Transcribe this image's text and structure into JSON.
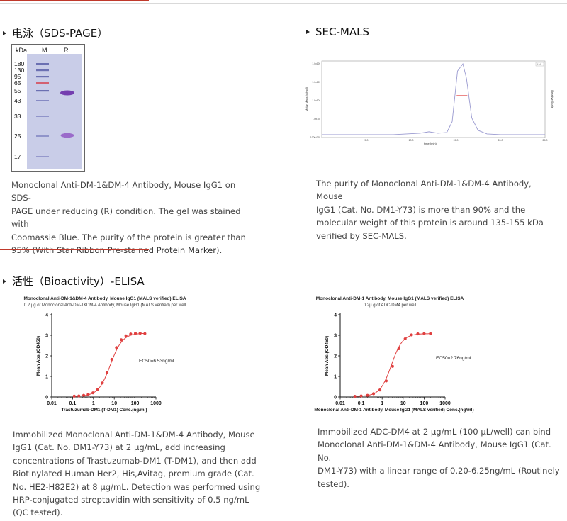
{
  "sds": {
    "title": "电泳（SDS-PAGE）",
    "gel": {
      "header_kda": "kDa",
      "header_m": "M",
      "header_r": "R",
      "markers": [
        "180",
        "130",
        "95",
        "65",
        "55",
        "43",
        "33",
        "25",
        "17"
      ]
    },
    "desc_1": "Monoclonal Anti-DM-1&DM-4 Antibody, Mouse IgG1 on SDS-",
    "desc_2": "PAGE under reducing (R) condition. The gel was stained with",
    "desc_3": "Coomassie Blue. The purity of the protein is greater than",
    "desc_4_pre": "95% (With ",
    "desc_4_link": "Star Ribbon Pre-stained Protein Marker",
    "desc_4_post": ")."
  },
  "secmals": {
    "title": "SEC-MALS",
    "x_ticks": [
      "5.0",
      "10.0",
      "15.0",
      "20.0",
      "25.0"
    ],
    "x_label": "time (min)",
    "y_ticks_left": [
      "1.0x10⁶",
      "1.0x10⁵",
      "1.0x10⁴",
      "1.0x10³",
      "1000.000"
    ],
    "y_label_left": "Molar Mass (g/mol)",
    "y_label_right": "Relative Scale",
    "legend": "UV",
    "desc_1": "The purity of Monoclonal Anti-DM-1&DM-4 Antibody, Mouse",
    "desc_2": "IgG1 (Cat. No. DM1-Y73) is more than 90% and the",
    "desc_3": "molecular weight of this protein is around 135-155 kDa",
    "desc_4": "verified by SEC-MALS."
  },
  "bio": {
    "title": "活性（Bioactivity）-ELISA"
  },
  "elisa1": {
    "title": "Monoclonal Anti-DM-1&DM-4 Antibody, Mouse IgG1 (MALS verified) ELISA",
    "subtitle": "0.2 μg of Monoclonal Anti-DM-1&DM-4 Antibody, Mouse IgG1 (MALS verified) per well",
    "ec50": "EC50=6.53ng/mL",
    "xlabel": "Trastuzumab-DM1 (T-DM1) Conc.(ng/ml)",
    "ylabel": "Mean Abs.(OD450)",
    "desc": [
      "Immobilized Monoclonal Anti-DM-1&DM-4 Antibody, Mouse",
      "IgG1 (Cat. No. DM1-Y73) at 2 μg/mL, add increasing",
      "concentrations of Trastuzumab-DM1 (T-DM1), and then add",
      "Biotinylated Human Her2, His,Avitag, premium grade (Cat.",
      "No. HE2-H82E2) at 8 μg/mL. Detection was performed using",
      "HRP-conjugated streptavidin with sensitivity of 0.5 ng/mL",
      "(QC tested)."
    ]
  },
  "elisa2": {
    "title": "Monoclonal Anti-DM-1 Antibody, Mouse IgG1 (MALS verified) ELISA",
    "subtitle": "0.2μ g of ADC-DM4 per well",
    "ec50": "EC50=2.76ng/mL",
    "xlabel": "Monoclonal Anti-DM-1 Antibody, Mouse IgG1 (MALS verified) Conc.(ng/ml)",
    "ylabel": "Mean Abs.(OD450)",
    "desc": [
      "Immobilized ADC-DM4 at 2 μg/mL (100 μL/well) can bind",
      "Monoclonal Anti-DM-1&DM-4 Antibody, Mouse IgG1 (Cat. No.",
      "DM1-Y73) with a linear range of 0.20-6.25ng/mL (Routinely",
      "tested)."
    ]
  },
  "chart_data": [
    {
      "type": "scatter",
      "title": "Monoclonal Anti-DM-1&DM-4 Antibody, Mouse IgG1 (MALS verified) ELISA",
      "subtitle": "0.2 μg of Monoclonal Anti-DM-1&DM-4 Antibody, Mouse IgG1 (MALS verified) per well",
      "xlabel": "Trastuzumab-DM1 (T-DM1) Conc.(ng/ml)",
      "ylabel": "Mean Abs.(OD450)",
      "x_scale": "log",
      "xlim": [
        0.01,
        1000
      ],
      "ylim": [
        0,
        4
      ],
      "x_tick_labels": [
        "0.01",
        "0.1",
        "1",
        "10",
        "100",
        "1000"
      ],
      "y_tick_labels": [
        "0",
        "1",
        "2",
        "3",
        "4"
      ],
      "ec50": 6.53,
      "x": [
        0.12,
        0.2,
        0.34,
        0.56,
        0.95,
        1.6,
        2.7,
        4.5,
        7.6,
        12.8,
        21.6,
        36.4,
        61.4,
        103.6,
        174.6,
        294.4
      ],
      "y": [
        0.04,
        0.05,
        0.08,
        0.12,
        0.2,
        0.36,
        0.68,
        1.19,
        1.83,
        2.4,
        2.78,
        2.97,
        3.06,
        3.09,
        3.1,
        3.08
      ],
      "fit": {
        "bottom": 0.03,
        "top": 3.1,
        "ec50": 6.53,
        "hill": 1.5
      }
    },
    {
      "type": "scatter",
      "title": "Monoclonal Anti-DM-1 Antibody, Mouse IgG1 (MALS verified) ELISA",
      "subtitle": "0.2μ g of ADC-DM4 per well",
      "xlabel": "Monoclonal Anti-DM-1 Antibody, Mouse IgG1 (MALS verified) Conc.(ng/ml)",
      "ylabel": "Mean Abs.(OD450)",
      "x_scale": "log",
      "xlim": [
        0.01,
        1000
      ],
      "ylim": [
        0,
        4
      ],
      "x_tick_labels": [
        "0.01",
        "0.1",
        "1",
        "10",
        "100",
        "1000"
      ],
      "y_tick_labels": [
        "0",
        "1",
        "2",
        "3",
        "4"
      ],
      "ec50": 2.76,
      "x": [
        0.05,
        0.1,
        0.2,
        0.39,
        0.78,
        1.56,
        3.13,
        6.25,
        12.5,
        25,
        50,
        100,
        200
      ],
      "y": [
        0.03,
        0.05,
        0.08,
        0.16,
        0.34,
        0.78,
        1.49,
        2.35,
        2.83,
        3.02,
        3.07,
        3.08,
        3.08
      ],
      "fit": {
        "bottom": 0.03,
        "top": 3.08,
        "ec50": 2.76,
        "hill": 1.6
      }
    },
    {
      "type": "line",
      "title": "SEC-MALS",
      "xlabel": "time (min)",
      "ylabel": "Molar Mass (g/mol)",
      "xlim": [
        0,
        25
      ],
      "x_tick_labels": [
        "5.0",
        "10.0",
        "15.0",
        "20.0",
        "25.0"
      ],
      "series": [
        {
          "name": "UV",
          "x": [
            0,
            8,
            11,
            12,
            13,
            14,
            14.6,
            15.2,
            15.8,
            16.2,
            16.8,
            17.5,
            18.5,
            20,
            25
          ],
          "values": [
            0.02,
            0.02,
            0.04,
            0.06,
            0.04,
            0.05,
            0.2,
            0.9,
            1.0,
            0.8,
            0.25,
            0.08,
            0.03,
            0.02,
            0.02
          ]
        }
      ]
    }
  ],
  "colors": {
    "accent": "#c0392b",
    "fit": "#e04040",
    "gel": "#c8cce8",
    "band": "#7a3fb0",
    "uv": "#8888cc"
  }
}
